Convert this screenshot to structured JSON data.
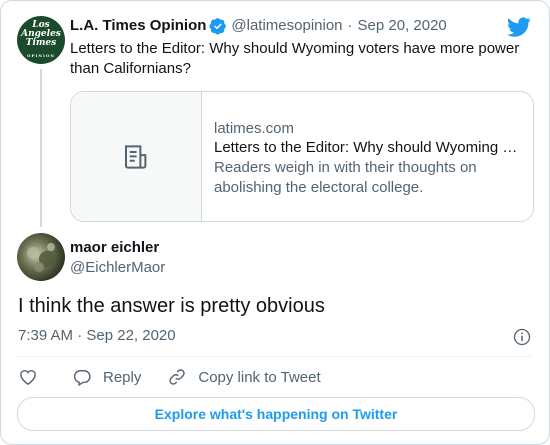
{
  "parent_tweet": {
    "avatar_text": [
      "Los",
      "Angeles",
      "Times"
    ],
    "avatar_subtext": "OPINION",
    "name": "L.A. Times Opinion",
    "handle": "@latimesopinion",
    "separator": "·",
    "date": "Sep 20, 2020",
    "text": "Letters to the Editor: Why should Wyoming voters have more power than Californians?",
    "link_card": {
      "domain": "latimes.com",
      "title": "Letters to the Editor: Why should Wyoming …",
      "description": "Readers weigh in with their thoughts on abolishing the electoral college."
    }
  },
  "reply_tweet": {
    "name": "maor eichler",
    "handle": "@EichlerMaor",
    "text": "I think the answer is pretty obvious",
    "timestamp": "7:39 AM · Sep 22, 2020"
  },
  "actions": {
    "reply_label": "Reply",
    "copy_label": "Copy link to Tweet"
  },
  "explore_label": "Explore what's happening on Twitter",
  "colors": {
    "accent": "#1d9bf0",
    "muted": "#536471",
    "border": "#cfd9de",
    "logo_bg": "#1b4a2c"
  },
  "icons": [
    "twitter-bird-icon",
    "verified-badge-icon",
    "article-icon",
    "info-icon",
    "heart-icon",
    "reply-icon",
    "link-icon"
  ]
}
